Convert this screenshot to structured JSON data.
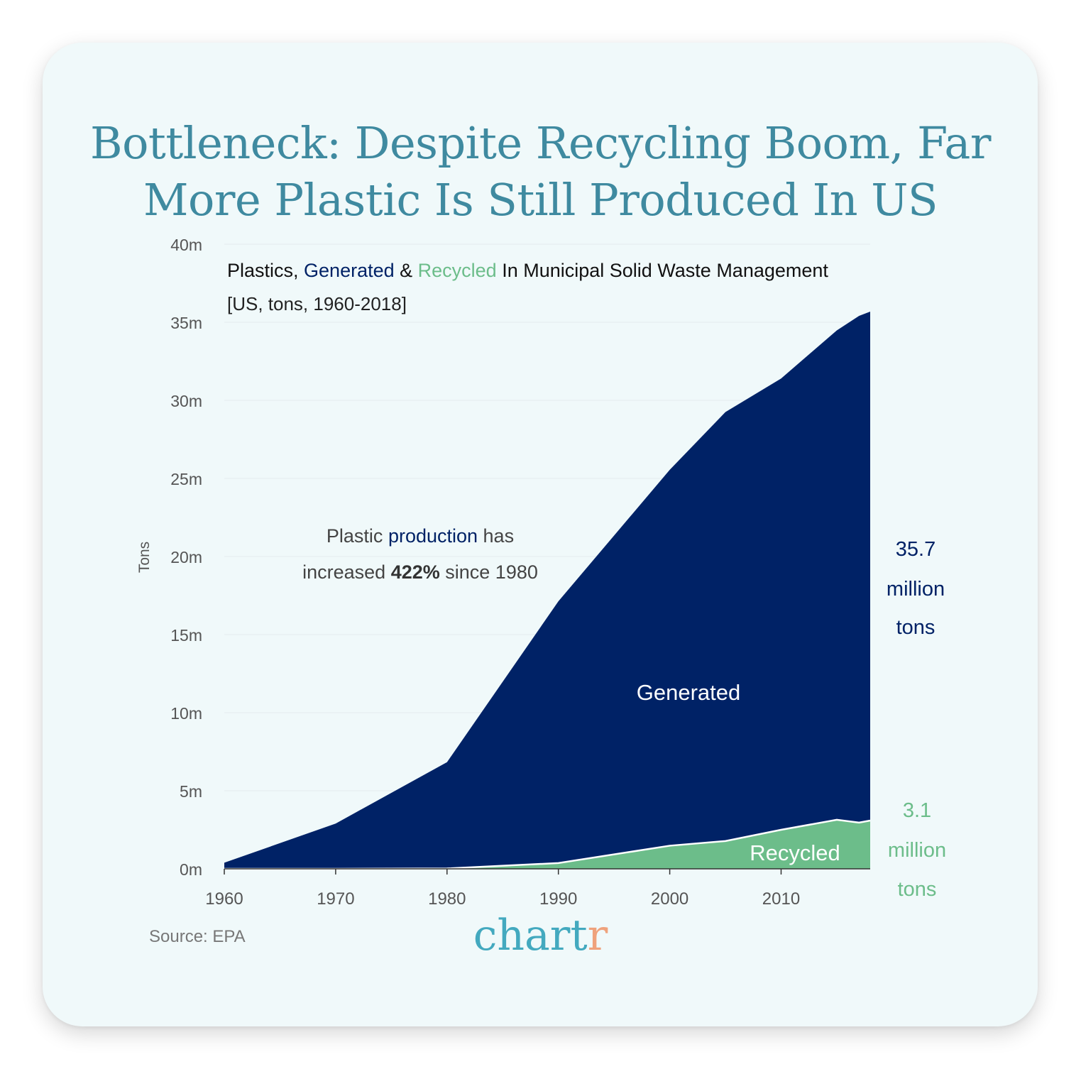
{
  "title_line1": "Bottleneck: Despite Recycling Boom, Far",
  "title_line2": "More Plastic Is Still Produced In US",
  "subtitle": {
    "part1": "Plastics, ",
    "generated": "Generated",
    "part2": " & ",
    "recycled": "Recycled",
    "part3": " In Municipal Solid Waste Management"
  },
  "subtitle2": "[US, tons, 1960-2018]",
  "annotation": {
    "line1_a": "Plastic ",
    "line1_b": "production",
    "line1_c": " has",
    "line2_a": "increased ",
    "line2_b": "422%",
    "line2_c": " since 1980"
  },
  "end_label_generated": [
    "35.7",
    "million",
    "tons"
  ],
  "end_label_recycled": [
    "3.1",
    "million",
    "tons"
  ],
  "source": "Source: EPA",
  "brand_main": "chart",
  "brand_accent": "r",
  "colors": {
    "generated": "#002266",
    "recycled": "#6cbd8a",
    "title": "#3f8aa0",
    "axis_text": "#555555"
  },
  "chart_data": {
    "type": "area",
    "ylabel": "Tons",
    "xlabel": "",
    "xlim": [
      1960,
      2018
    ],
    "ylim": [
      0,
      40000000
    ],
    "x_ticks": [
      "1960",
      "1970",
      "1980",
      "1990",
      "2000",
      "2010"
    ],
    "x_tick_values": [
      1960,
      1970,
      1980,
      1990,
      2000,
      2010
    ],
    "y_ticks": [
      "0m",
      "5m",
      "10m",
      "15m",
      "20m",
      "25m",
      "30m",
      "35m",
      "40m"
    ],
    "y_tick_values": [
      0,
      5000000,
      10000000,
      15000000,
      20000000,
      25000000,
      30000000,
      35000000,
      40000000
    ],
    "grid": true,
    "series": [
      {
        "name": "Generated",
        "x": [
          1960,
          1970,
          1980,
          1990,
          2000,
          2005,
          2010,
          2015,
          2017,
          2018
        ],
        "values": [
          390000,
          2900000,
          6830000,
          17130000,
          25550000,
          29250000,
          31400000,
          34480000,
          35410000,
          35680000
        ]
      },
      {
        "name": "Recycled",
        "x": [
          1960,
          1970,
          1980,
          1990,
          2000,
          2005,
          2010,
          2015,
          2017,
          2018
        ],
        "values": [
          0,
          0,
          20000,
          370000,
          1480000,
          1780000,
          2500000,
          3140000,
          2960000,
          3090000
        ]
      }
    ]
  }
}
